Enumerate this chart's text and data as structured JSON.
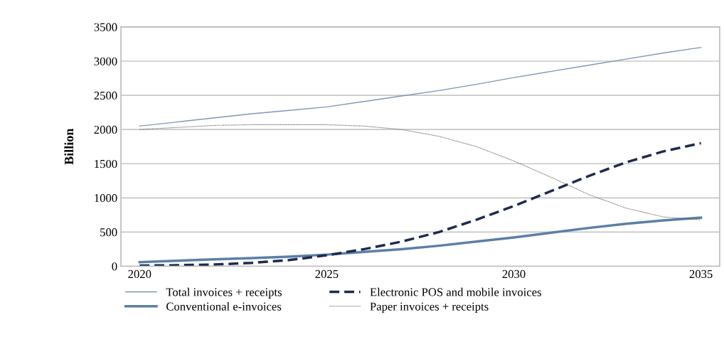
{
  "chart_data": {
    "type": "line",
    "ylabel": "Billion",
    "x": [
      2020,
      2021,
      2022,
      2023,
      2024,
      2025,
      2026,
      2027,
      2028,
      2029,
      2030,
      2031,
      2032,
      2033,
      2034,
      2035
    ],
    "xlim": [
      2019.5,
      2035.5
    ],
    "xticks": [
      2020,
      2025,
      2030,
      2035
    ],
    "ylim": [
      0,
      3500
    ],
    "yticks": [
      0,
      500,
      1000,
      1500,
      2000,
      2500,
      3000,
      3500
    ],
    "grid": "y",
    "legend": "bottom",
    "marker": "none",
    "series": [
      {
        "name": "Total invoices + receipts",
        "color": "#7f96b8",
        "line_style": "solid",
        "values": [
          2050,
          2110,
          2170,
          2230,
          2280,
          2330,
          2410,
          2490,
          2570,
          2660,
          2760,
          2850,
          2940,
          3030,
          3120,
          3200
        ]
      },
      {
        "name": "Conventional e-invoices",
        "color": "#5b7fa6",
        "line_style": "solid",
        "values": [
          60,
          80,
          100,
          120,
          140,
          170,
          210,
          250,
          300,
          360,
          420,
          490,
          560,
          620,
          670,
          710
        ]
      },
      {
        "name": "Electronic POS and mobile invoices",
        "color": "#1f2a4d",
        "line_style": "dashed",
        "values": [
          10,
          15,
          25,
          50,
          90,
          160,
          250,
          360,
          500,
          680,
          880,
          1100,
          1320,
          1520,
          1680,
          1800
        ]
      },
      {
        "name": "Paper invoices + receipts",
        "color": "#555555",
        "line_style": "dotted",
        "values": [
          2000,
          2030,
          2060,
          2070,
          2070,
          2070,
          2050,
          2000,
          1900,
          1750,
          1540,
          1300,
          1050,
          850,
          720,
          680
        ]
      }
    ]
  }
}
